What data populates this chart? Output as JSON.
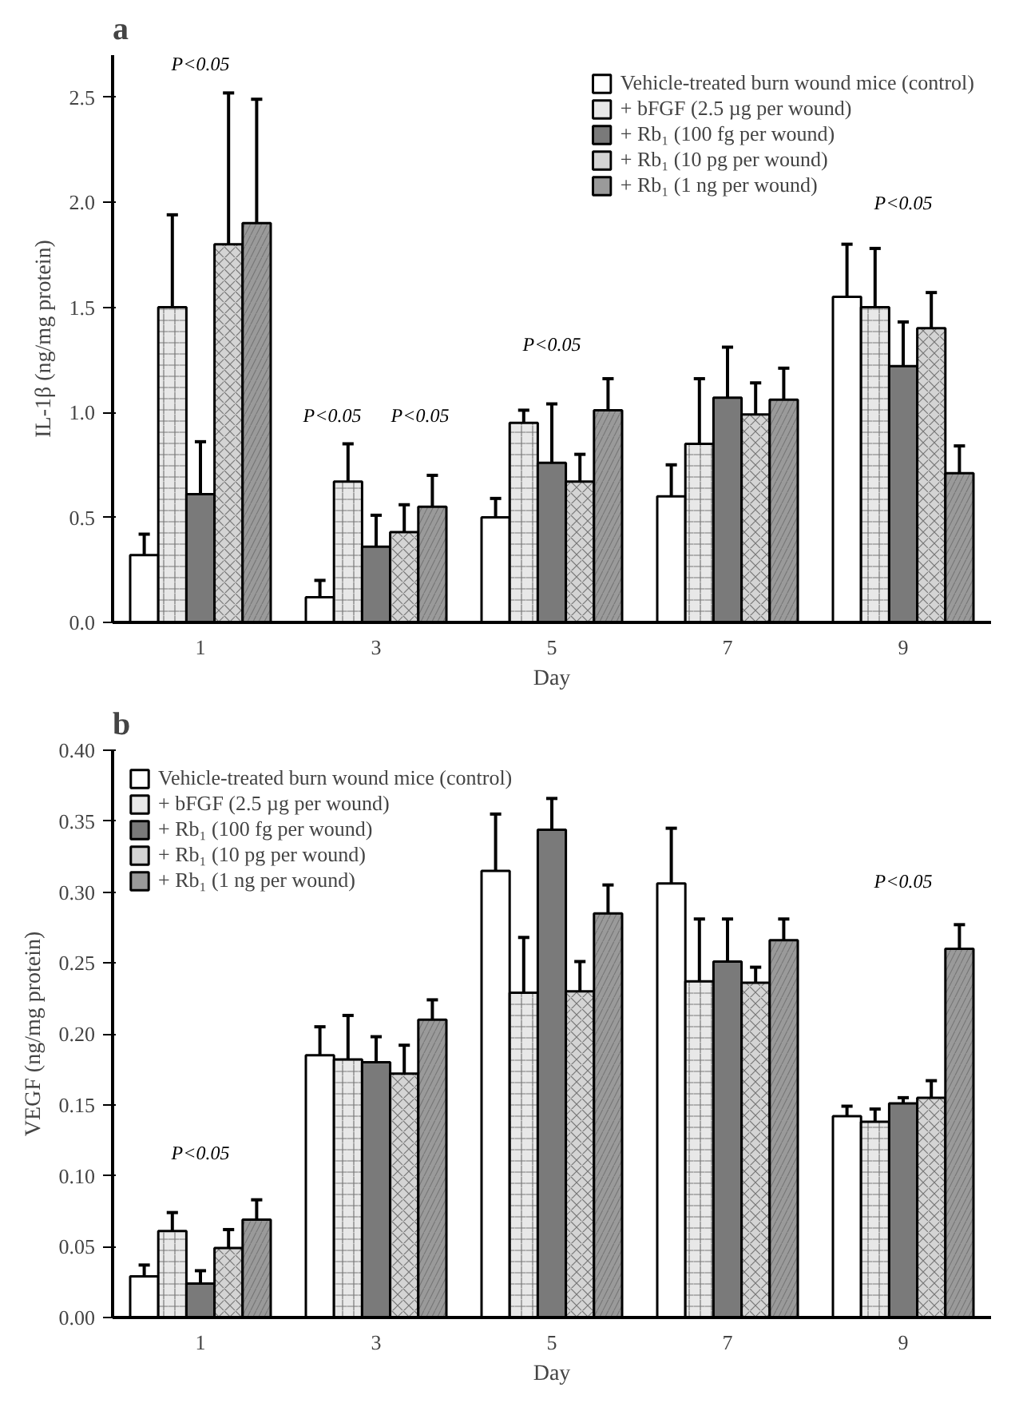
{
  "chart_data": [
    {
      "type": "bar",
      "title": "a",
      "xlabel": "Day",
      "ylabel": "IL-1β (ng/mg protein)",
      "categories": [
        "1",
        "3",
        "5",
        "7",
        "9"
      ],
      "ylim": [
        0,
        2.7
      ],
      "yticks": [
        {
          "value": 0,
          "label": "0.0"
        },
        {
          "value": 0.5,
          "label": "0.5"
        },
        {
          "value": 1,
          "label": "1.0"
        },
        {
          "value": 1.5,
          "label": "1.5"
        },
        {
          "value": 2,
          "label": "2.0"
        },
        {
          "value": 2.5,
          "label": "2.5"
        }
      ],
      "legend": "top right",
      "grid": false,
      "series": [
        {
          "name": "Vehicle-treated burn wound mice (control)",
          "color": "#ffffff",
          "values": [
            0.32,
            0.12,
            0.5,
            0.6,
            1.55
          ],
          "errors": [
            [
              0.32,
              0.42
            ],
            [
              0.12,
              0.2
            ],
            [
              0.5,
              0.59
            ],
            [
              0.6,
              0.75
            ],
            [
              1.55,
              1.8
            ]
          ]
        },
        {
          "name": "+ bFGF (2.5 µg per wound)",
          "color": "#e8e8e8",
          "values": [
            1.5,
            0.67,
            0.95,
            0.85,
            1.5
          ],
          "errors": [
            [
              1.5,
              1.94
            ],
            [
              0.67,
              0.85
            ],
            [
              0.95,
              1.01
            ],
            [
              0.85,
              1.16
            ],
            [
              1.5,
              1.78
            ]
          ]
        },
        {
          "name": "+ Rb₁ (100 fg per wound)",
          "color": "#7a7a7a",
          "values": [
            0.61,
            0.36,
            0.76,
            1.07,
            1.22
          ],
          "errors": [
            [
              0.61,
              0.86
            ],
            [
              0.36,
              0.51
            ],
            [
              0.76,
              1.04
            ],
            [
              1.07,
              1.31
            ],
            [
              1.22,
              1.43
            ]
          ]
        },
        {
          "name": "+ Rb₁ (10 pg per wound)",
          "color": "#d4d4d4",
          "values": [
            1.8,
            0.43,
            0.67,
            0.99,
            1.4
          ],
          "errors": [
            [
              1.8,
              2.52
            ],
            [
              0.43,
              0.56
            ],
            [
              0.67,
              0.8
            ],
            [
              0.99,
              1.14
            ],
            [
              1.4,
              1.57
            ]
          ]
        },
        {
          "name": "+ Rb₁ (1 ng per wound)",
          "color": "#9a9a9a",
          "values": [
            1.9,
            0.55,
            1.01,
            1.06,
            0.71
          ],
          "errors": [
            [
              1.9,
              2.49
            ],
            [
              0.55,
              0.7
            ],
            [
              1.01,
              1.16
            ],
            [
              1.06,
              1.21
            ],
            [
              0.71,
              0.84
            ]
          ]
        }
      ],
      "annotations": [
        "P<0.05",
        "P<0.05",
        "P<0.05",
        "P<0.05",
        "P<0.05"
      ]
    },
    {
      "type": "bar",
      "title": "b",
      "xlabel": "Day",
      "ylabel": "VEGF (ng/mg protein)",
      "categories": [
        "1",
        "3",
        "5",
        "7",
        "9"
      ],
      "ylim": [
        0,
        0.4
      ],
      "yticks": [
        {
          "value": 0,
          "label": "0.00"
        },
        {
          "value": 0.05,
          "label": "0.05"
        },
        {
          "value": 0.1,
          "label": "0.10"
        },
        {
          "value": 0.15,
          "label": "0.15"
        },
        {
          "value": 0.2,
          "label": "0.20"
        },
        {
          "value": 0.25,
          "label": "0.25"
        },
        {
          "value": 0.3,
          "label": "0.30"
        },
        {
          "value": 0.35,
          "label": "0.35"
        },
        {
          "value": 0.4,
          "label": "0.40"
        }
      ],
      "legend": "top left",
      "grid": false,
      "series": [
        {
          "name": "Vehicle-treated burn wound mice (control)",
          "color": "#ffffff",
          "values": [
            0.029,
            0.185,
            0.315,
            0.306,
            0.142
          ],
          "errors": [
            [
              0.029,
              0.037
            ],
            [
              0.185,
              0.205
            ],
            [
              0.315,
              0.355
            ],
            [
              0.306,
              0.345
            ],
            [
              0.142,
              0.149
            ]
          ]
        },
        {
          "name": "+ bFGF (2.5 µg per wound)",
          "color": "#e8e8e8",
          "values": [
            0.061,
            0.182,
            0.229,
            0.237,
            0.138
          ],
          "errors": [
            [
              0.061,
              0.074
            ],
            [
              0.182,
              0.213
            ],
            [
              0.229,
              0.268
            ],
            [
              0.237,
              0.281
            ],
            [
              0.138,
              0.147
            ]
          ]
        },
        {
          "name": "+ Rb₁ (100 fg per wound)",
          "color": "#7a7a7a",
          "values": [
            0.024,
            0.18,
            0.344,
            0.251,
            0.151
          ],
          "errors": [
            [
              0.024,
              0.033
            ],
            [
              0.18,
              0.198
            ],
            [
              0.344,
              0.366
            ],
            [
              0.251,
              0.281
            ],
            [
              0.151,
              0.155
            ]
          ]
        },
        {
          "name": "+ Rb₁ (10 pg per wound)",
          "color": "#d4d4d4",
          "values": [
            0.049,
            0.172,
            0.23,
            0.236,
            0.155
          ],
          "errors": [
            [
              0.049,
              0.062
            ],
            [
              0.172,
              0.192
            ],
            [
              0.23,
              0.251
            ],
            [
              0.236,
              0.247
            ],
            [
              0.155,
              0.167
            ]
          ]
        },
        {
          "name": "+ Rb₁ (1 ng per wound)",
          "color": "#9a9a9a",
          "values": [
            0.069,
            0.21,
            0.285,
            0.266,
            0.26
          ],
          "errors": [
            [
              0.069,
              0.083
            ],
            [
              0.21,
              0.224
            ],
            [
              0.285,
              0.305
            ],
            [
              0.266,
              0.281
            ],
            [
              0.26,
              0.277
            ]
          ]
        }
      ],
      "annotations": [
        "P<0.05",
        "P<0.05"
      ]
    }
  ]
}
